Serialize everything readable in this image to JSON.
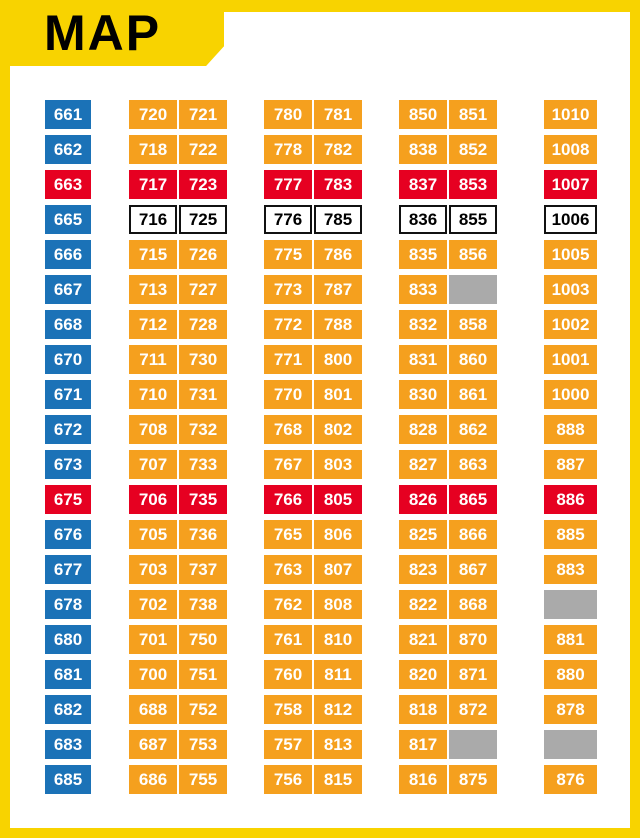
{
  "title": "MAP",
  "colors": {
    "frame": "#F8D300",
    "blue": "#1B72B7",
    "orange": "#F5A01E",
    "red": "#E60021",
    "gray": "#AAAAAA"
  },
  "grid": {
    "columns": [
      {
        "name": "column-600s",
        "rows": [
          [
            [
              "661",
              "blue"
            ]
          ],
          [
            [
              "662",
              "blue"
            ]
          ],
          [
            [
              "663",
              "red"
            ]
          ],
          [
            [
              "665",
              "blue"
            ]
          ],
          [
            [
              "666",
              "blue"
            ]
          ],
          [
            [
              "667",
              "blue"
            ]
          ],
          [
            [
              "668",
              "blue"
            ]
          ],
          [
            [
              "670",
              "blue"
            ]
          ],
          [
            [
              "671",
              "blue"
            ]
          ],
          [
            [
              "672",
              "blue"
            ]
          ],
          [
            [
              "673",
              "blue"
            ]
          ],
          [
            [
              "675",
              "red"
            ]
          ],
          [
            [
              "676",
              "blue"
            ]
          ],
          [
            [
              "677",
              "blue"
            ]
          ],
          [
            [
              "678",
              "blue"
            ]
          ],
          [
            [
              "680",
              "blue"
            ]
          ],
          [
            [
              "681",
              "blue"
            ]
          ],
          [
            [
              "682",
              "blue"
            ]
          ],
          [
            [
              "683",
              "blue"
            ]
          ],
          [
            [
              "685",
              "blue"
            ]
          ]
        ]
      },
      {
        "name": "column-700s",
        "rows": [
          [
            [
              "720",
              "orange"
            ],
            [
              "721",
              "orange"
            ]
          ],
          [
            [
              "718",
              "orange"
            ],
            [
              "722",
              "orange"
            ]
          ],
          [
            [
              "717",
              "red"
            ],
            [
              "723",
              "red"
            ]
          ],
          [
            [
              "716",
              "white"
            ],
            [
              "725",
              "white"
            ]
          ],
          [
            [
              "715",
              "orange"
            ],
            [
              "726",
              "orange"
            ]
          ],
          [
            [
              "713",
              "orange"
            ],
            [
              "727",
              "orange"
            ]
          ],
          [
            [
              "712",
              "orange"
            ],
            [
              "728",
              "orange"
            ]
          ],
          [
            [
              "711",
              "orange"
            ],
            [
              "730",
              "orange"
            ]
          ],
          [
            [
              "710",
              "orange"
            ],
            [
              "731",
              "orange"
            ]
          ],
          [
            [
              "708",
              "orange"
            ],
            [
              "732",
              "orange"
            ]
          ],
          [
            [
              "707",
              "orange"
            ],
            [
              "733",
              "orange"
            ]
          ],
          [
            [
              "706",
              "red"
            ],
            [
              "735",
              "red"
            ]
          ],
          [
            [
              "705",
              "orange"
            ],
            [
              "736",
              "orange"
            ]
          ],
          [
            [
              "703",
              "orange"
            ],
            [
              "737",
              "orange"
            ]
          ],
          [
            [
              "702",
              "orange"
            ],
            [
              "738",
              "orange"
            ]
          ],
          [
            [
              "701",
              "orange"
            ],
            [
              "750",
              "orange"
            ]
          ],
          [
            [
              "700",
              "orange"
            ],
            [
              "751",
              "orange"
            ]
          ],
          [
            [
              "688",
              "orange"
            ],
            [
              "752",
              "orange"
            ]
          ],
          [
            [
              "687",
              "orange"
            ],
            [
              "753",
              "orange"
            ]
          ],
          [
            [
              "686",
              "orange"
            ],
            [
              "755",
              "orange"
            ]
          ]
        ]
      },
      {
        "name": "column-700-800s",
        "rows": [
          [
            [
              "780",
              "orange"
            ],
            [
              "781",
              "orange"
            ]
          ],
          [
            [
              "778",
              "orange"
            ],
            [
              "782",
              "orange"
            ]
          ],
          [
            [
              "777",
              "red"
            ],
            [
              "783",
              "red"
            ]
          ],
          [
            [
              "776",
              "white"
            ],
            [
              "785",
              "white"
            ]
          ],
          [
            [
              "775",
              "orange"
            ],
            [
              "786",
              "orange"
            ]
          ],
          [
            [
              "773",
              "orange"
            ],
            [
              "787",
              "orange"
            ]
          ],
          [
            [
              "772",
              "orange"
            ],
            [
              "788",
              "orange"
            ]
          ],
          [
            [
              "771",
              "orange"
            ],
            [
              "800",
              "orange"
            ]
          ],
          [
            [
              "770",
              "orange"
            ],
            [
              "801",
              "orange"
            ]
          ],
          [
            [
              "768",
              "orange"
            ],
            [
              "802",
              "orange"
            ]
          ],
          [
            [
              "767",
              "orange"
            ],
            [
              "803",
              "orange"
            ]
          ],
          [
            [
              "766",
              "red"
            ],
            [
              "805",
              "red"
            ]
          ],
          [
            [
              "765",
              "orange"
            ],
            [
              "806",
              "orange"
            ]
          ],
          [
            [
              "763",
              "orange"
            ],
            [
              "807",
              "orange"
            ]
          ],
          [
            [
              "762",
              "orange"
            ],
            [
              "808",
              "orange"
            ]
          ],
          [
            [
              "761",
              "orange"
            ],
            [
              "810",
              "orange"
            ]
          ],
          [
            [
              "760",
              "orange"
            ],
            [
              "811",
              "orange"
            ]
          ],
          [
            [
              "758",
              "orange"
            ],
            [
              "812",
              "orange"
            ]
          ],
          [
            [
              "757",
              "orange"
            ],
            [
              "813",
              "orange"
            ]
          ],
          [
            [
              "756",
              "orange"
            ],
            [
              "815",
              "orange"
            ]
          ]
        ]
      },
      {
        "name": "column-800s",
        "rows": [
          [
            [
              "850",
              "orange"
            ],
            [
              "851",
              "orange"
            ]
          ],
          [
            [
              "838",
              "orange"
            ],
            [
              "852",
              "orange"
            ]
          ],
          [
            [
              "837",
              "red"
            ],
            [
              "853",
              "red"
            ]
          ],
          [
            [
              "836",
              "white"
            ],
            [
              "855",
              "white"
            ]
          ],
          [
            [
              "835",
              "orange"
            ],
            [
              "856",
              "orange"
            ]
          ],
          [
            [
              "833",
              "orange"
            ],
            [
              "",
              "gray"
            ]
          ],
          [
            [
              "832",
              "orange"
            ],
            [
              "858",
              "orange"
            ]
          ],
          [
            [
              "831",
              "orange"
            ],
            [
              "860",
              "orange"
            ]
          ],
          [
            [
              "830",
              "orange"
            ],
            [
              "861",
              "orange"
            ]
          ],
          [
            [
              "828",
              "orange"
            ],
            [
              "862",
              "orange"
            ]
          ],
          [
            [
              "827",
              "orange"
            ],
            [
              "863",
              "orange"
            ]
          ],
          [
            [
              "826",
              "red"
            ],
            [
              "865",
              "red"
            ]
          ],
          [
            [
              "825",
              "orange"
            ],
            [
              "866",
              "orange"
            ]
          ],
          [
            [
              "823",
              "orange"
            ],
            [
              "867",
              "orange"
            ]
          ],
          [
            [
              "822",
              "orange"
            ],
            [
              "868",
              "orange"
            ]
          ],
          [
            [
              "821",
              "orange"
            ],
            [
              "870",
              "orange"
            ]
          ],
          [
            [
              "820",
              "orange"
            ],
            [
              "871",
              "orange"
            ]
          ],
          [
            [
              "818",
              "orange"
            ],
            [
              "872",
              "orange"
            ]
          ],
          [
            [
              "817",
              "orange"
            ],
            [
              "",
              "gray"
            ]
          ],
          [
            [
              "816",
              "orange"
            ],
            [
              "875",
              "orange"
            ]
          ]
        ]
      },
      {
        "name": "column-1000s",
        "rows": [
          [
            [
              "1010",
              "orange"
            ]
          ],
          [
            [
              "1008",
              "orange"
            ]
          ],
          [
            [
              "1007",
              "red"
            ]
          ],
          [
            [
              "1006",
              "white"
            ]
          ],
          [
            [
              "1005",
              "orange"
            ]
          ],
          [
            [
              "1003",
              "orange"
            ]
          ],
          [
            [
              "1002",
              "orange"
            ]
          ],
          [
            [
              "1001",
              "orange"
            ]
          ],
          [
            [
              "1000",
              "orange"
            ]
          ],
          [
            [
              "888",
              "orange"
            ]
          ],
          [
            [
              "887",
              "orange"
            ]
          ],
          [
            [
              "886",
              "red"
            ]
          ],
          [
            [
              "885",
              "orange"
            ]
          ],
          [
            [
              "883",
              "orange"
            ]
          ],
          [
            [
              "",
              "gray"
            ]
          ],
          [
            [
              "881",
              "orange"
            ]
          ],
          [
            [
              "880",
              "orange"
            ]
          ],
          [
            [
              "878",
              "orange"
            ]
          ],
          [
            [
              "",
              "gray"
            ]
          ],
          [
            [
              "876",
              "orange"
            ]
          ]
        ]
      }
    ]
  }
}
